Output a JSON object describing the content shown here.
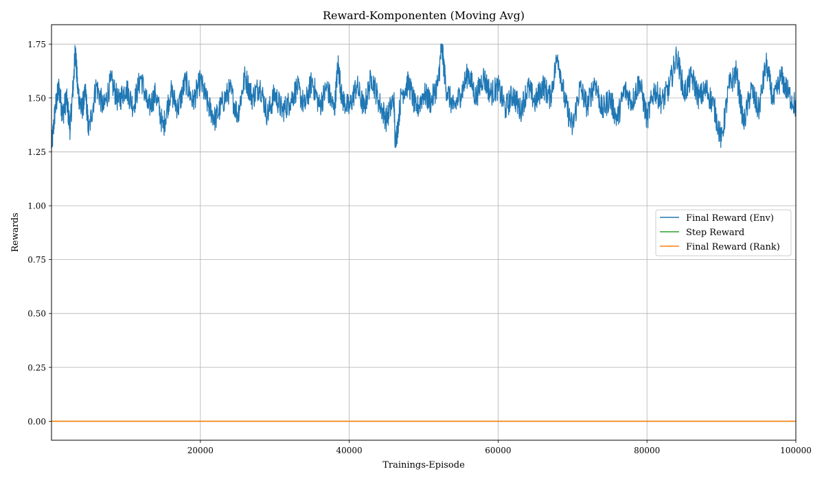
{
  "chart_data": {
    "type": "line",
    "title": "Reward-Komponenten (Moving Avg)",
    "xlabel": "Trainings-Episode",
    "ylabel": "Rewards",
    "xlim": [
      0,
      100000
    ],
    "ylim": [
      -0.088,
      1.84
    ],
    "grid": true,
    "legend_position": "center-right",
    "x_ticks": [
      20000,
      40000,
      60000,
      80000,
      100000
    ],
    "y_ticks": [
      0.0,
      0.25,
      0.5,
      0.75,
      1.0,
      1.25,
      1.5,
      1.75
    ],
    "x_tick_labels": [
      "20000",
      "40000",
      "60000",
      "80000",
      "100000"
    ],
    "y_tick_labels": [
      "0.00",
      "0.25",
      "0.50",
      "0.75",
      "1.00",
      "1.25",
      "1.50",
      "1.75"
    ],
    "series": [
      {
        "name": "Final Reward (Env)",
        "color": "#1f77b4",
        "description_level": "noisy moving average around 1.50",
        "points": [
          [
            0,
            1.26
          ],
          [
            500,
            1.45
          ],
          [
            1000,
            1.55
          ],
          [
            1500,
            1.42
          ],
          [
            2000,
            1.5
          ],
          [
            2500,
            1.36
          ],
          [
            3000,
            1.6
          ],
          [
            3200,
            1.73
          ],
          [
            3500,
            1.55
          ],
          [
            4000,
            1.44
          ],
          [
            4600,
            1.52
          ],
          [
            5000,
            1.34
          ],
          [
            6000,
            1.56
          ],
          [
            7000,
            1.45
          ],
          [
            8000,
            1.58
          ],
          [
            9000,
            1.48
          ],
          [
            10000,
            1.55
          ],
          [
            11000,
            1.46
          ],
          [
            12000,
            1.6
          ],
          [
            13000,
            1.45
          ],
          [
            14000,
            1.52
          ],
          [
            15000,
            1.36
          ],
          [
            16000,
            1.53
          ],
          [
            17000,
            1.45
          ],
          [
            18000,
            1.58
          ],
          [
            19000,
            1.48
          ],
          [
            20000,
            1.58
          ],
          [
            21000,
            1.47
          ],
          [
            22000,
            1.4
          ],
          [
            23000,
            1.48
          ],
          [
            24000,
            1.54
          ],
          [
            25000,
            1.42
          ],
          [
            26000,
            1.6
          ],
          [
            27000,
            1.5
          ],
          [
            28000,
            1.56
          ],
          [
            29000,
            1.42
          ],
          [
            30000,
            1.52
          ],
          [
            31000,
            1.44
          ],
          [
            32000,
            1.48
          ],
          [
            33000,
            1.55
          ],
          [
            34000,
            1.46
          ],
          [
            35000,
            1.58
          ],
          [
            36000,
            1.46
          ],
          [
            37000,
            1.55
          ],
          [
            38000,
            1.44
          ],
          [
            38500,
            1.66
          ],
          [
            39000,
            1.5
          ],
          [
            40000,
            1.45
          ],
          [
            41000,
            1.56
          ],
          [
            42000,
            1.45
          ],
          [
            43000,
            1.6
          ],
          [
            44000,
            1.48
          ],
          [
            45000,
            1.4
          ],
          [
            46000,
            1.5
          ],
          [
            46200,
            1.27
          ],
          [
            47000,
            1.52
          ],
          [
            48000,
            1.57
          ],
          [
            49000,
            1.44
          ],
          [
            50000,
            1.52
          ],
          [
            51000,
            1.48
          ],
          [
            52000,
            1.58
          ],
          [
            52400,
            1.75
          ],
          [
            53000,
            1.55
          ],
          [
            54000,
            1.45
          ],
          [
            55000,
            1.52
          ],
          [
            56000,
            1.62
          ],
          [
            57000,
            1.5
          ],
          [
            58000,
            1.6
          ],
          [
            59000,
            1.52
          ],
          [
            60000,
            1.55
          ],
          [
            61000,
            1.45
          ],
          [
            62000,
            1.52
          ],
          [
            63000,
            1.44
          ],
          [
            64000,
            1.55
          ],
          [
            65000,
            1.48
          ],
          [
            66000,
            1.56
          ],
          [
            67000,
            1.5
          ],
          [
            68000,
            1.7
          ],
          [
            69000,
            1.48
          ],
          [
            70000,
            1.36
          ],
          [
            71000,
            1.55
          ],
          [
            72000,
            1.46
          ],
          [
            73000,
            1.58
          ],
          [
            74000,
            1.44
          ],
          [
            75000,
            1.5
          ],
          [
            76000,
            1.4
          ],
          [
            77000,
            1.54
          ],
          [
            78000,
            1.48
          ],
          [
            79000,
            1.58
          ],
          [
            80000,
            1.4
          ],
          [
            81000,
            1.54
          ],
          [
            82000,
            1.48
          ],
          [
            83000,
            1.55
          ],
          [
            84000,
            1.7
          ],
          [
            85000,
            1.52
          ],
          [
            86000,
            1.6
          ],
          [
            87000,
            1.5
          ],
          [
            88000,
            1.54
          ],
          [
            89000,
            1.46
          ],
          [
            90000,
            1.3
          ],
          [
            91000,
            1.55
          ],
          [
            92000,
            1.62
          ],
          [
            93000,
            1.38
          ],
          [
            94000,
            1.54
          ],
          [
            95000,
            1.44
          ],
          [
            96000,
            1.66
          ],
          [
            97000,
            1.48
          ],
          [
            98000,
            1.6
          ],
          [
            99000,
            1.52
          ],
          [
            100000,
            1.46
          ]
        ]
      },
      {
        "name": "Step Reward",
        "color": "#2ca02c",
        "points": [
          [
            0,
            0.0
          ],
          [
            100000,
            0.0
          ]
        ]
      },
      {
        "name": "Final Reward (Rank)",
        "color": "#ff7f0e",
        "points": [
          [
            0,
            0.0
          ],
          [
            100000,
            0.0
          ]
        ]
      }
    ]
  }
}
